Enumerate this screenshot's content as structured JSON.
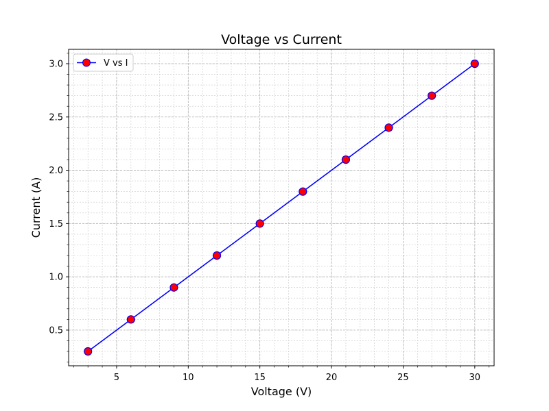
{
  "chart_data": {
    "type": "line",
    "title": "Voltage vs Current",
    "xlabel": "Voltage (V)",
    "ylabel": "Current (A)",
    "xlim": [
      1.65,
      31.35
    ],
    "ylim": [
      0.165,
      3.135
    ],
    "xticks": [
      5,
      10,
      15,
      20,
      25,
      30
    ],
    "xtick_labels": [
      "5",
      "10",
      "15",
      "20",
      "25",
      "30"
    ],
    "yticks": [
      0.5,
      1.0,
      1.5,
      2.0,
      2.5,
      3.0
    ],
    "ytick_labels": [
      "0.5",
      "1.0",
      "1.5",
      "2.0",
      "2.5",
      "3.0"
    ],
    "x_minor_step": 1,
    "y_minor_step": 0.1,
    "grid": "major and minor, dashed",
    "legend_position": "upper-left",
    "series": [
      {
        "name": "V vs I",
        "x": [
          3,
          6,
          9,
          12,
          15,
          18,
          21,
          24,
          27,
          30
        ],
        "y": [
          0.3,
          0.6,
          0.9,
          1.2,
          1.5,
          1.8,
          2.1,
          2.4,
          2.7,
          3.0
        ],
        "line_color": "#0000ff",
        "marker_face_color": "#ff0000",
        "marker_edge_color": "#0000ff"
      }
    ]
  }
}
